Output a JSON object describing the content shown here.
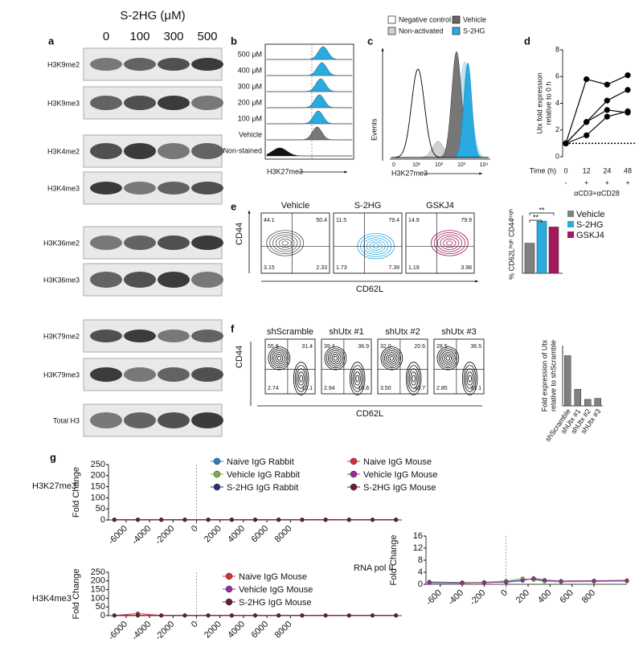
{
  "letters": [
    "a",
    "b",
    "c",
    "d",
    "e",
    "f",
    "g"
  ],
  "panels": {
    "panel_a": {
      "title": "S-2HG (μM)",
      "doses": [
        "0",
        "100",
        "300",
        "500"
      ],
      "blots": [
        "H3K9me2",
        "H3K9me3",
        "H3K4me2",
        "H3K4me3",
        "H3K36me2",
        "H3K36me3",
        "H3K79me2",
        "H3K79me3",
        "Total H3"
      ]
    },
    "panel_b": {
      "rows": [
        "500 μM",
        "400 μM",
        "300 μM",
        "200 μM",
        "100 μM",
        "Vehicle",
        "Non-stained"
      ],
      "xlabel": "H3K27me3"
    },
    "panel_c": {
      "legend": [
        "Negative control",
        "Non-activated",
        "Vehicle",
        "S-2HG"
      ],
      "ylabel": "Events",
      "xlabel": "H3K27me3",
      "xticks": [
        "0",
        "10¹",
        "10²",
        "10³",
        "10⁴"
      ]
    },
    "panel_e": {
      "ylabel": "CD44",
      "xlabel": "CD62L",
      "plots": [
        {
          "title": "Vehicle",
          "quadrants": [
            "44.1",
            "50.4",
            "3.15",
            "2.33"
          ]
        },
        {
          "title": "S-2HG",
          "quadrants": [
            "11.5",
            "79.4",
            "1.73",
            "7.39"
          ]
        },
        {
          "title": "GSKJ4",
          "quadrants": [
            "14.9",
            "79.9",
            "1.19",
            "3.98"
          ]
        }
      ]
    },
    "panel_f": {
      "ylabel": "CD44",
      "xlabel": "CD62L",
      "plots": [
        {
          "title": "shScramble",
          "quadrants": [
            "55.8",
            "31.4",
            "2.74",
            "10.1"
          ]
        },
        {
          "title": "shUtx #1",
          "quadrants": [
            "39.4",
            "36.9",
            "2.94",
            "18.8"
          ]
        },
        {
          "title": "shUtx #2",
          "quadrants": [
            "32.0",
            "20.6",
            "3.50",
            "43.7"
          ]
        },
        {
          "title": "shUtx #3",
          "quadrants": [
            "28.5",
            "36.5",
            "2.85",
            "31.1"
          ]
        }
      ]
    }
  },
  "chart_data": [
    {
      "type": "line",
      "categories": [
        "0",
        "12",
        "24",
        "48"
      ],
      "xlabel": "Time (h)",
      "ylabel": [
        "Utx fold expression",
        "relative to 0 h"
      ],
      "ylim": [
        0,
        8
      ],
      "yticks": [
        0,
        2,
        4,
        6,
        8
      ],
      "reference_line": 1,
      "treatment": [
        "-",
        "+",
        "+",
        "+"
      ],
      "treatment_label": "αCD3+αCD28",
      "series": [
        {
          "color": "#000000",
          "values": [
            1,
            5.8,
            5.4,
            6.1
          ]
        },
        {
          "color": "#000000",
          "values": [
            1,
            2.6,
            4.2,
            5.0
          ]
        },
        {
          "color": "#000000",
          "values": [
            1,
            2.6,
            3.5,
            3.3
          ]
        },
        {
          "color": "#000000",
          "values": [
            1,
            1.6,
            3.0,
            3.4
          ]
        }
      ]
    },
    {
      "type": "bar",
      "ylabel": "% CD62Lʰⁱᵍʰ CD44ʰⁱᵍʰ",
      "ylim": [
        0,
        100
      ],
      "significance": [
        "**",
        "**"
      ],
      "series": [
        {
          "name": "Vehicle",
          "color": "#808080",
          "values": [
            52
          ]
        },
        {
          "name": "S-2HG",
          "color": "#29abe2",
          "values": [
            90
          ]
        },
        {
          "name": "GSKJ4",
          "color": "#a3195b",
          "values": [
            80
          ]
        }
      ]
    },
    {
      "type": "bar",
      "ylabel": [
        "Fold expression of Utx",
        "relative to shScramble"
      ],
      "ylim": [
        0,
        1.2
      ],
      "color": "#808080",
      "categories": [
        "shScramble",
        "shUtx #1",
        "shUtx #2",
        "shUtx #3"
      ],
      "values": [
        1.0,
        0.33,
        0.13,
        0.15
      ]
    },
    {
      "type": "line",
      "label": "H3K27me3",
      "ylabel": "Fold Change",
      "xlim": [
        -7500,
        17500
      ],
      "ylim": [
        0,
        250
      ],
      "yticks": [
        0,
        50,
        100,
        150,
        200,
        250
      ],
      "xticks": [
        -6000,
        -4000,
        -2000,
        0,
        2000,
        4000,
        6000,
        8000
      ],
      "reference_x": 0,
      "x": [
        -7000,
        -5000,
        -3000,
        -1000,
        1000,
        3000,
        5000,
        7000,
        9000,
        11000,
        13000,
        15000,
        17000
      ],
      "series": [
        {
          "name": "Naive IgG Rabbit",
          "color": "#2a7fc1",
          "values": [
            1,
            1,
            1,
            2,
            1,
            1,
            1,
            1,
            1,
            1,
            1,
            1,
            1
          ]
        },
        {
          "name": "Vehicle IgG Rabbit",
          "color": "#7cb342",
          "values": [
            1,
            1,
            2,
            1,
            1,
            2,
            1,
            1,
            1,
            1,
            1,
            1,
            1
          ]
        },
        {
          "name": "S-2HG IgG Rabbit",
          "color": "#2b2f80",
          "values": [
            1,
            1,
            1,
            1,
            2,
            1,
            1,
            1,
            1,
            1,
            1,
            1,
            1
          ]
        },
        {
          "name": "Naive IgG Mouse",
          "color": "#d62f3a",
          "values": [
            1,
            2,
            1,
            1,
            1,
            1,
            1,
            2,
            1,
            1,
            1,
            1,
            1
          ]
        },
        {
          "name": "Vehicle IgG Mouse",
          "color": "#9b2c9b",
          "values": [
            1,
            1,
            1,
            1,
            1,
            1,
            2,
            1,
            1,
            1,
            1,
            1,
            1
          ]
        },
        {
          "name": "S-2HG IgG Mouse",
          "color": "#6b1f2a",
          "values": [
            1,
            1,
            1,
            1,
            1,
            1,
            1,
            1,
            1,
            2,
            1,
            1,
            1
          ]
        }
      ]
    },
    {
      "type": "line",
      "label": "H3K4me3",
      "ylabel": "Fold Change",
      "xlim": [
        -7500,
        17500
      ],
      "ylim": [
        0,
        250
      ],
      "yticks": [
        0,
        50,
        100,
        150,
        200,
        250
      ],
      "xticks": [
        -6000,
        -4000,
        -2000,
        0,
        2000,
        4000,
        6000,
        8000
      ],
      "reference_x": 0,
      "x": [
        -7000,
        -5000,
        -3000,
        -1000,
        1000,
        3000,
        5000,
        7000,
        9000,
        11000,
        13000,
        15000,
        17000
      ],
      "series": [
        {
          "name": "Naive IgG Mouse",
          "color": "#d62f3a",
          "values": [
            1,
            12,
            1,
            1,
            1,
            1,
            1,
            1,
            1,
            1,
            1,
            1,
            1
          ]
        },
        {
          "name": "Vehicle IgG Mouse",
          "color": "#9b2c9b",
          "values": [
            1,
            2,
            1,
            1,
            1,
            1,
            1,
            1,
            1,
            1,
            1,
            1,
            1
          ]
        },
        {
          "name": "S-2HG IgG Mouse",
          "color": "#6b1f2a",
          "values": [
            1,
            1,
            1,
            1,
            1,
            1,
            1,
            1,
            1,
            1,
            1,
            1,
            1
          ]
        }
      ]
    },
    {
      "type": "line",
      "label": "RNA pol II",
      "ylabel": "Fold Change",
      "xlim": [
        -730,
        1100
      ],
      "ylim": [
        0,
        16
      ],
      "yticks": [
        0,
        4,
        8,
        12,
        16
      ],
      "xticks": [
        -600,
        -400,
        -200,
        0,
        200,
        400,
        600,
        800
      ],
      "reference_x": 0,
      "x": [
        -700,
        -400,
        -200,
        0,
        150,
        250,
        350,
        500,
        800,
        1100
      ],
      "series": [
        {
          "color": "#2a7fc1",
          "values": [
            0.8,
            0.6,
            0.5,
            0.9,
            1.4,
            1.8,
            1.2,
            0.9,
            1.0,
            1.1
          ]
        },
        {
          "color": "#7cb342",
          "values": [
            0.6,
            0.5,
            0.7,
            1.1,
            1.9,
            1.5,
            1.0,
            0.8,
            0.9,
            1.0
          ]
        },
        {
          "color": "#9b2c9b",
          "values": [
            0.5,
            0.4,
            0.6,
            0.7,
            1.2,
            2.0,
            1.4,
            1.1,
            1.2,
            1.3
          ]
        }
      ]
    }
  ]
}
